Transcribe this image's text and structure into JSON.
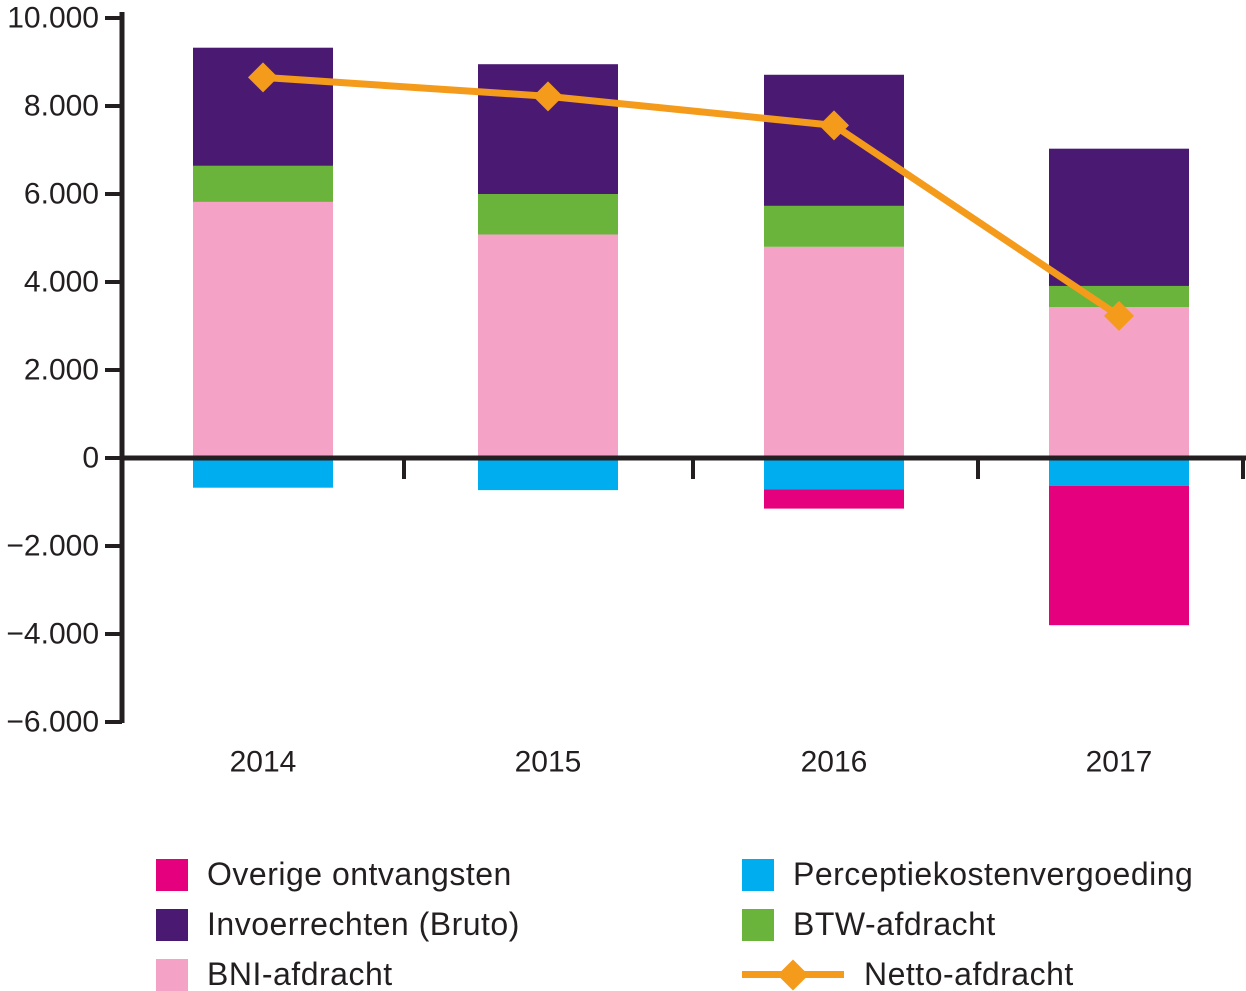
{
  "chart_data": {
    "type": "bar",
    "subtype": "stacked-bar-with-line",
    "categories": [
      "2014",
      "2015",
      "2016",
      "2017"
    ],
    "series": [
      {
        "name": "BNI-afdracht",
        "color": "#F4A2C6",
        "values": [
          5820,
          5080,
          4800,
          3430
        ]
      },
      {
        "name": "BTW-afdracht",
        "color": "#6AB43C",
        "values": [
          820,
          920,
          930,
          480
        ]
      },
      {
        "name": "Invoerrechten (Bruto)",
        "color": "#4A1A73",
        "values": [
          2685,
          2950,
          2980,
          3120
        ]
      },
      {
        "name": "Perceptiekostenvergoeding",
        "color": "#00AEEF",
        "values": [
          -675,
          -730,
          -710,
          -630
        ]
      },
      {
        "name": "Overige ontvangsten",
        "color": "#E5007D",
        "values": [
          0,
          0,
          -440,
          -3170
        ]
      }
    ],
    "line_series": {
      "name": "Netto-afdracht",
      "color": "#F49B1C",
      "marker": "diamond",
      "values": [
        8650,
        8220,
        7560,
        3230
      ]
    },
    "title": "",
    "xlabel": "",
    "ylabel": "",
    "ylim": [
      -6000,
      10000
    ],
    "y_ticks": [
      {
        "value": 10000,
        "label": "10.000"
      },
      {
        "value": 8000,
        "label": "8.000"
      },
      {
        "value": 6000,
        "label": "6.000"
      },
      {
        "value": 4000,
        "label": "4.000"
      },
      {
        "value": 2000,
        "label": "2.000"
      },
      {
        "value": 0,
        "label": "0"
      },
      {
        "value": -2000,
        "label": "−2.000"
      },
      {
        "value": -4000,
        "label": "−4.000"
      },
      {
        "value": -6000,
        "label": "−6.000"
      }
    ],
    "grid": false,
    "legend_position": "bottom",
    "axis_color": "#231F20"
  },
  "legend": {
    "items": [
      {
        "label": "Overige ontvangsten",
        "color": "#E5007D",
        "swatch": "square"
      },
      {
        "label": "Perceptiekostenvergoeding",
        "color": "#00AEEF",
        "swatch": "square"
      },
      {
        "label": "Invoerrechten (Bruto)",
        "color": "#4A1A73",
        "swatch": "square"
      },
      {
        "label": "BTW-afdracht",
        "color": "#6AB43C",
        "swatch": "square"
      },
      {
        "label": "BNI-afdracht",
        "color": "#F4A2C6",
        "swatch": "square"
      },
      {
        "label": "Netto-afdracht",
        "color": "#F49B1C",
        "swatch": "line-diamond"
      }
    ]
  }
}
